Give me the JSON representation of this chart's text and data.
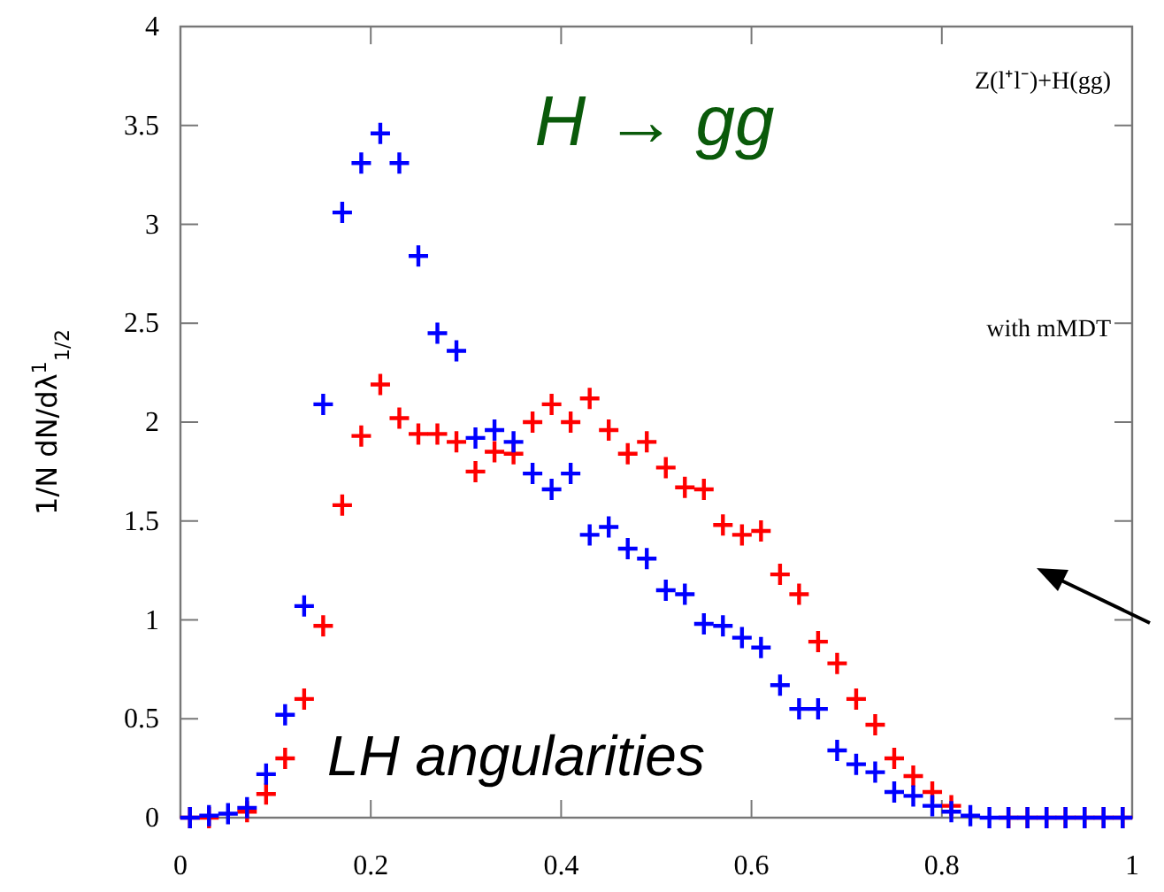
{
  "chart_data": {
    "type": "scatter",
    "ylabel": "1/N dN/dλ$^{1}$$_{1/2}$",
    "annotations": [
      "H → gg",
      "LH angularities",
      "Z(l⁺l⁻)+H(gg)",
      "with mMDT"
    ],
    "x": [
      0.01,
      0.03,
      0.05,
      0.07,
      0.09,
      0.11,
      0.13,
      0.15,
      0.17,
      0.19,
      0.21,
      0.23,
      0.25,
      0.27,
      0.29,
      0.31,
      0.33,
      0.35,
      0.37,
      0.39,
      0.41,
      0.43,
      0.45,
      0.47,
      0.49,
      0.51,
      0.53,
      0.55,
      0.57,
      0.59,
      0.61,
      0.63,
      0.65,
      0.67,
      0.69,
      0.71,
      0.73,
      0.75,
      0.77,
      0.79,
      0.81,
      0.83,
      0.85,
      0.87,
      0.89,
      0.91,
      0.93,
      0.95,
      0.97,
      0.99
    ],
    "series": [
      {
        "color": "#ff0000",
        "values": [
          0,
          0,
          null,
          0.03,
          0.12,
          0.3,
          0.6,
          0.97,
          1.58,
          1.93,
          2.19,
          2.02,
          1.94,
          1.94,
          1.9,
          1.75,
          1.85,
          1.84,
          2.0,
          2.09,
          2.0,
          2.12,
          1.96,
          1.84,
          1.9,
          1.77,
          1.67,
          1.66,
          1.48,
          1.43,
          1.45,
          1.23,
          1.13,
          0.89,
          0.78,
          0.6,
          0.47,
          0.3,
          0.21,
          0.13,
          0.06,
          null,
          null,
          0,
          0,
          0,
          0,
          0,
          0,
          0
        ]
      },
      {
        "color": "#0000ff",
        "values": [
          0,
          0.01,
          0.02,
          0.05,
          0.22,
          0.52,
          1.07,
          2.09,
          3.06,
          3.31,
          3.46,
          3.31,
          2.84,
          2.45,
          2.36,
          1.92,
          1.96,
          1.9,
          1.74,
          1.66,
          1.74,
          1.43,
          1.47,
          1.36,
          1.31,
          1.15,
          1.13,
          0.98,
          0.97,
          0.91,
          0.86,
          0.67,
          0.55,
          0.55,
          0.34,
          0.27,
          0.23,
          0.13,
          0.11,
          0.06,
          0.03,
          0.01,
          0,
          0,
          0,
          0,
          0,
          0,
          0,
          0
        ]
      }
    ],
    "marker": "cross",
    "xlim": [
      0,
      1
    ],
    "xticks": [
      0,
      0.2,
      0.4,
      0.6,
      0.8,
      1
    ],
    "ylim": [
      0,
      4
    ],
    "yticks": [
      0,
      0.5,
      1,
      1.5,
      2,
      2.5,
      3,
      3.5,
      4
    ]
  }
}
